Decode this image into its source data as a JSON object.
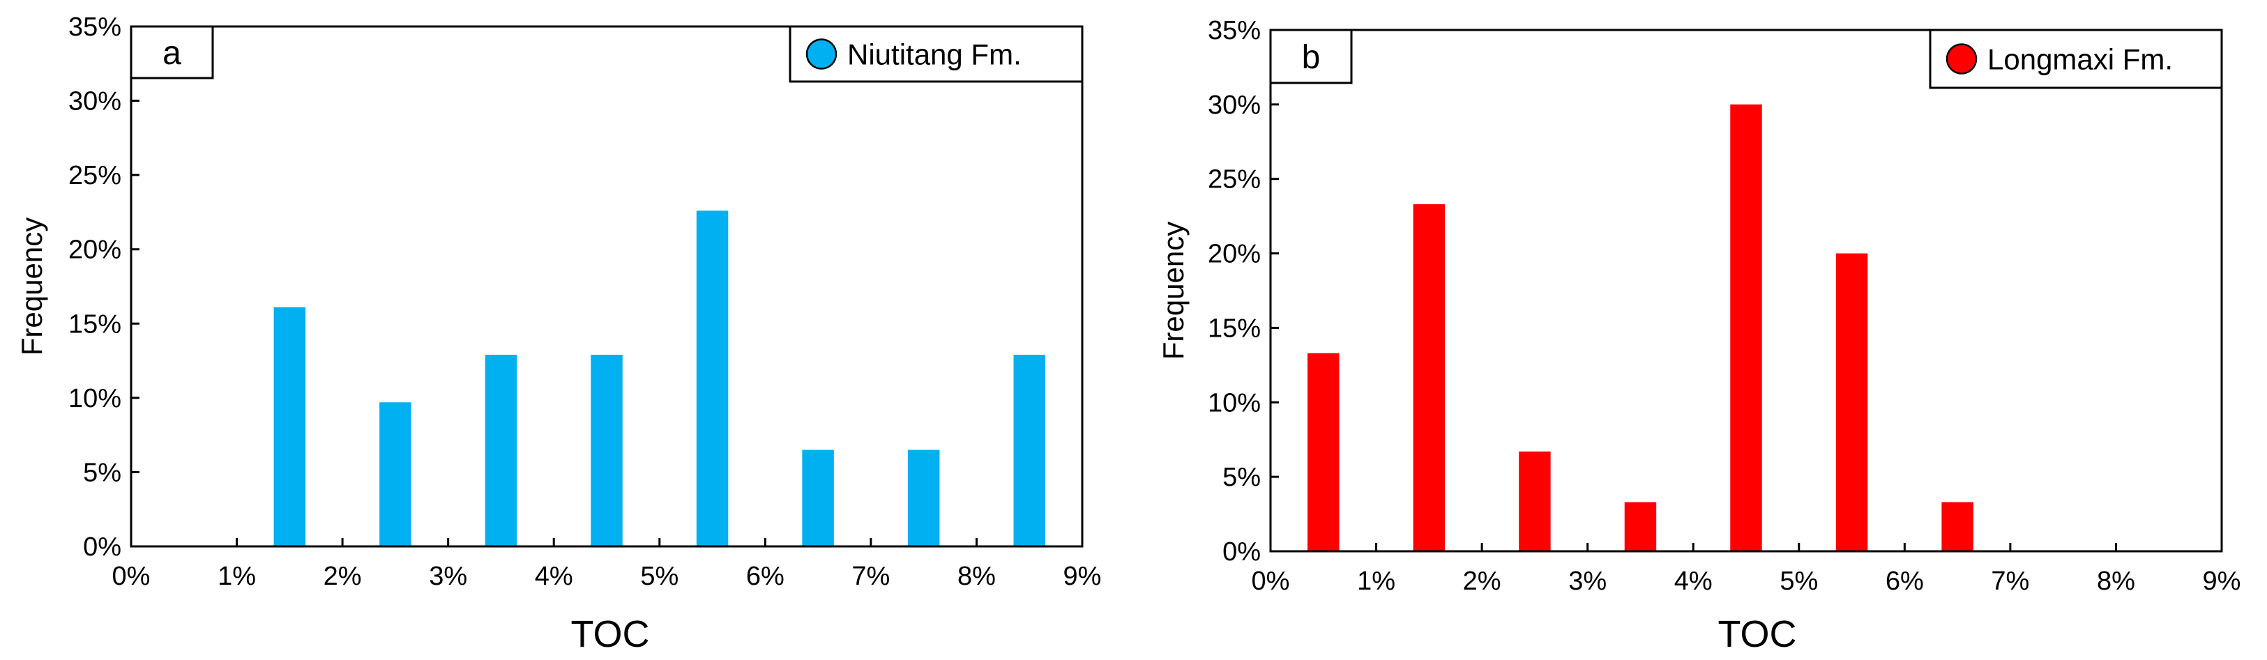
{
  "chart_data": [
    {
      "type": "bar",
      "panel_label": "a",
      "legend": "Niutitang Fm.",
      "color": "#00B0F0",
      "xlabel": "TOC",
      "ylabel": "Frequency",
      "x_ticks": [
        "0%",
        "1%",
        "2%",
        "3%",
        "4%",
        "5%",
        "6%",
        "7%",
        "8%",
        "9%"
      ],
      "y_ticks": [
        "0%",
        "5%",
        "10%",
        "15%",
        "20%",
        "25%",
        "30%",
        "35%"
      ],
      "xlim": [
        0,
        9
      ],
      "ylim": [
        0,
        35
      ],
      "bar_centers": [
        1.5,
        2.5,
        3.5,
        4.5,
        5.5,
        6.5,
        7.5,
        8.5
      ],
      "values": [
        16.1,
        9.7,
        12.9,
        12.9,
        22.6,
        6.5,
        6.5,
        12.9
      ],
      "legend_position": "top-right"
    },
    {
      "type": "bar",
      "panel_label": "b",
      "legend": "Longmaxi Fm.",
      "color": "#FF0000",
      "xlabel": "TOC",
      "ylabel": "Frequency",
      "x_ticks": [
        "0%",
        "1%",
        "2%",
        "3%",
        "4%",
        "5%",
        "6%",
        "7%",
        "8%",
        "9%"
      ],
      "y_ticks": [
        "0%",
        "5%",
        "10%",
        "15%",
        "20%",
        "25%",
        "30%",
        "35%"
      ],
      "xlim": [
        0,
        9
      ],
      "ylim": [
        0,
        35
      ],
      "bar_centers": [
        0.5,
        1.5,
        2.5,
        3.5,
        4.5,
        5.5,
        6.5
      ],
      "values": [
        13.3,
        23.3,
        6.7,
        3.3,
        30.0,
        20.0,
        3.3
      ],
      "legend_position": "top-right"
    }
  ]
}
